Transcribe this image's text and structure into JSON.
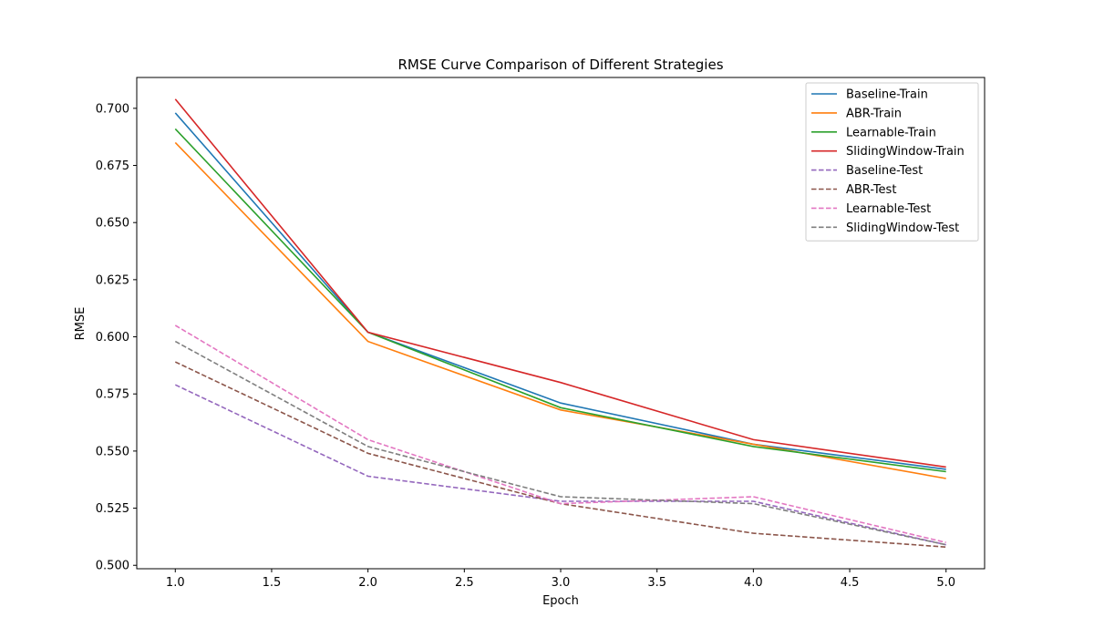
{
  "chart_data": {
    "type": "line",
    "title": "RMSE Curve Comparison of Different Strategies",
    "xlabel": "Epoch",
    "ylabel": "RMSE",
    "x": [
      1.0,
      2.0,
      3.0,
      4.0,
      5.0
    ],
    "xlim": [
      0.8,
      5.2
    ],
    "ylim": [
      0.4985,
      0.7135
    ],
    "xticks": [
      1.0,
      1.5,
      2.0,
      2.5,
      3.0,
      3.5,
      4.0,
      4.5,
      5.0
    ],
    "xtick_labels": [
      "1.0",
      "1.5",
      "2.0",
      "2.5",
      "3.0",
      "3.5",
      "4.0",
      "4.5",
      "5.0"
    ],
    "yticks": [
      0.5,
      0.525,
      0.55,
      0.575,
      0.6,
      0.625,
      0.65,
      0.675,
      0.7
    ],
    "ytick_labels": [
      "0.500",
      "0.525",
      "0.550",
      "0.575",
      "0.600",
      "0.625",
      "0.650",
      "0.675",
      "0.700"
    ],
    "grid": false,
    "legend_position": "top-right",
    "series": [
      {
        "name": "Baseline-Train",
        "color": "#1f77b4",
        "style": "solid",
        "values": [
          0.698,
          0.602,
          0.571,
          0.553,
          0.542
        ]
      },
      {
        "name": "ABR-Train",
        "color": "#ff7f0e",
        "style": "solid",
        "values": [
          0.685,
          0.598,
          0.568,
          0.553,
          0.538
        ]
      },
      {
        "name": "Learnable-Train",
        "color": "#2ca02c",
        "style": "solid",
        "values": [
          0.691,
          0.602,
          0.569,
          0.552,
          0.541
        ]
      },
      {
        "name": "SlidingWindow-Train",
        "color": "#d62728",
        "style": "solid",
        "values": [
          0.704,
          0.602,
          0.58,
          0.555,
          0.543
        ]
      },
      {
        "name": "Baseline-Test",
        "color": "#9467bd",
        "style": "dashed",
        "values": [
          0.579,
          0.539,
          0.528,
          0.528,
          0.509
        ]
      },
      {
        "name": "ABR-Test",
        "color": "#8c564b",
        "style": "dashed",
        "values": [
          0.589,
          0.549,
          0.527,
          0.514,
          0.508
        ]
      },
      {
        "name": "Learnable-Test",
        "color": "#e377c2",
        "style": "dashed",
        "values": [
          0.605,
          0.555,
          0.527,
          0.53,
          0.51
        ]
      },
      {
        "name": "SlidingWindow-Test",
        "color": "#7f7f7f",
        "style": "dashed",
        "values": [
          0.598,
          0.552,
          0.53,
          0.527,
          0.509
        ]
      }
    ]
  }
}
